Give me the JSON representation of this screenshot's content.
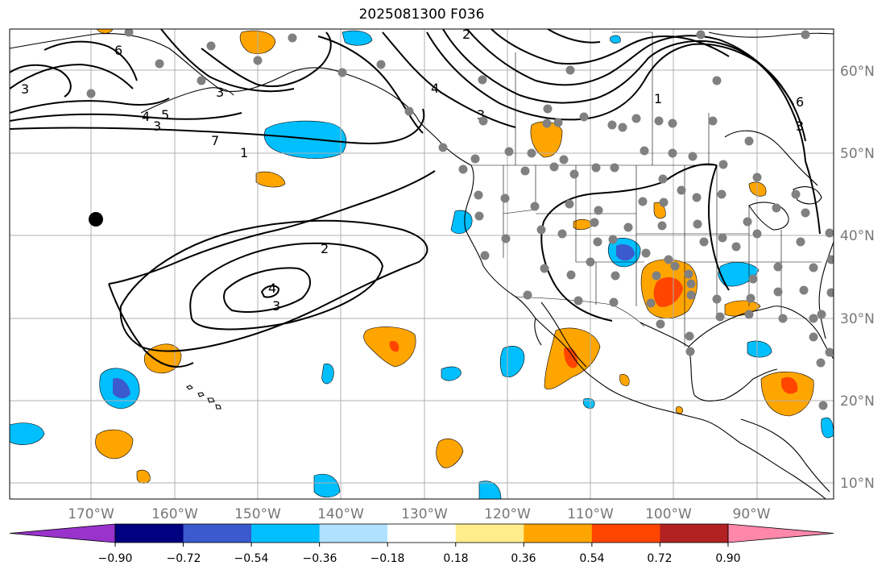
{
  "title": "2025081300 F036",
  "lat_labels": [
    "60°N",
    "50°N",
    "40°N",
    "30°N",
    "20°N",
    "10°N"
  ],
  "lon_labels": [
    "170°W",
    "160°W",
    "150°W",
    "140°W",
    "130°W",
    "120°W",
    "110°W",
    "100°W",
    "90°W"
  ],
  "colorbar": {
    "ticks": [
      "−0.90",
      "−0.72",
      "−0.54",
      "−0.36",
      "−0.18",
      "0.18",
      "0.36",
      "0.54",
      "0.72",
      "0.90"
    ],
    "colors": [
      "#9933cc",
      "#000080",
      "#3a5acd",
      "#00bfff",
      "#b0e2ff",
      "#ffffff",
      "#ffec8b",
      "#ffa500",
      "#ff4500",
      "#b22222",
      "#ff88aa"
    ]
  },
  "contour_labels": [
    "3",
    "2",
    "6",
    "5",
    "4",
    "3",
    "3",
    "7",
    "1",
    "4",
    "1",
    "3",
    "6",
    "3",
    "2",
    "4",
    "3"
  ],
  "colors": {
    "coast": "#000000",
    "contour": "#000000",
    "station": "#808080",
    "grid": "#b0b0b0",
    "neg_light": "#00bfff",
    "neg_dark": "#3a5acd",
    "pos_light": "#ffa500",
    "pos_dark": "#ff4500"
  }
}
